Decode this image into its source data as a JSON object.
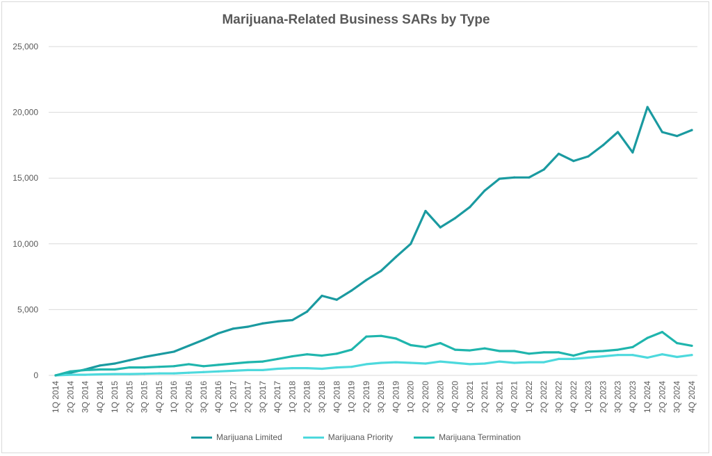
{
  "chart_data": {
    "type": "line",
    "title": "Marijuana-Related Business SARs by Type",
    "xlabel": "",
    "ylabel": "",
    "ylim": [
      0,
      25000
    ],
    "yticks": [
      "0",
      "5,000",
      "10,000",
      "15,000",
      "20,000",
      "25,000"
    ],
    "grid": true,
    "legend_position": "bottom",
    "categories": [
      "1Q 2014",
      "2Q 2014",
      "3Q 2014",
      "4Q 2014",
      "1Q 2015",
      "2Q 2015",
      "3Q 2015",
      "4Q 2015",
      "1Q 2016",
      "2Q 2016",
      "3Q 2016",
      "4Q 2016",
      "1Q 2017",
      "2Q 2017",
      "3Q 2017",
      "4Q 2017",
      "1Q 2018",
      "2Q 2018",
      "3Q 2018",
      "4Q 2018",
      "1Q 2019",
      "2Q 2019",
      "3Q 2019",
      "4Q 2019",
      "1Q 2020",
      "2Q 2020",
      "3Q 2020",
      "4Q 2020",
      "1Q 2021",
      "2Q 2021",
      "3Q 2021",
      "4Q 2021",
      "1Q 2022",
      "2Q 2022",
      "3Q 2022",
      "4Q 2022",
      "1Q 2023",
      "2Q 2023",
      "3Q 2023",
      "4Q 2023",
      "1Q 2024",
      "2Q 2024",
      "3Q 2024",
      "4Q 2024"
    ],
    "series": [
      {
        "name": "Marijuana Limited",
        "color": "#1a9aa0",
        "values": [
          0,
          200,
          450,
          750,
          900,
          1150,
          1400,
          1600,
          1800,
          2250,
          2700,
          3200,
          3550,
          3700,
          3950,
          4100,
          4200,
          4850,
          6050,
          5750,
          6450,
          7250,
          7950,
          9000,
          10000,
          12500,
          11250,
          11950,
          12800,
          14050,
          14950,
          15050,
          15050,
          15650,
          16850,
          16300,
          16650,
          17500,
          18500,
          16950,
          20400,
          18500,
          18200,
          18650
        ]
      },
      {
        "name": "Marijuana Priority",
        "color": "#4dd9dd",
        "values": [
          0,
          50,
          50,
          80,
          100,
          100,
          120,
          150,
          150,
          200,
          250,
          300,
          350,
          400,
          400,
          500,
          550,
          550,
          500,
          600,
          650,
          850,
          950,
          1000,
          950,
          900,
          1050,
          950,
          850,
          900,
          1050,
          950,
          1000,
          1000,
          1250,
          1250,
          1350,
          1450,
          1550,
          1550,
          1350,
          1600,
          1400,
          1550
        ]
      },
      {
        "name": "Marijuana Termination",
        "color": "#1fb5ad",
        "values": [
          0,
          300,
          400,
          450,
          450,
          600,
          600,
          650,
          700,
          850,
          700,
          800,
          900,
          1000,
          1050,
          1250,
          1450,
          1600,
          1500,
          1650,
          1950,
          2950,
          3000,
          2800,
          2300,
          2150,
          2450,
          1950,
          1900,
          2050,
          1850,
          1850,
          1650,
          1750,
          1750,
          1500,
          1800,
          1850,
          1950,
          2150,
          2850,
          3300,
          2450,
          2250
        ]
      }
    ]
  }
}
